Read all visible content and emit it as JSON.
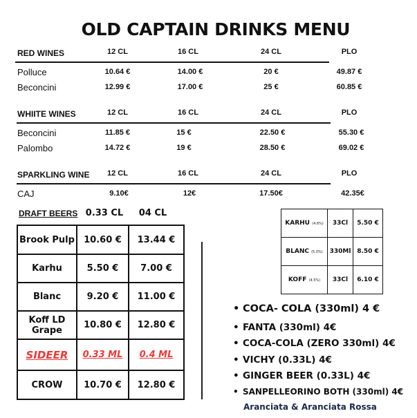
{
  "title": "OLD CAPTAIN DRINKS MENU",
  "wine_sections": [
    {
      "heading": "RED WINES",
      "columns": [
        "12 CL",
        "16 CL",
        "24 CL",
        "PLO"
      ],
      "rows": [
        {
          "name": "Polluce",
          "prices": [
            "10.64 €",
            "14.00 €",
            "20 €",
            "49.87 €"
          ]
        },
        {
          "name": "Beconcini",
          "prices": [
            "12.99 €",
            "17.00 €",
            "25 €",
            "60.85 €"
          ]
        }
      ]
    },
    {
      "heading": "WHIITE WINES",
      "columns": [
        "12 CL",
        "16 CL",
        "24 CL",
        "PLO"
      ],
      "rows": [
        {
          "name": "Beconcini",
          "prices": [
            "11.85 €",
            "15 €",
            "22.50 €",
            "55.30 €"
          ]
        },
        {
          "name": "Palombo",
          "prices": [
            "14.72 €",
            "19 €",
            "28.50 €",
            "69.02 €"
          ]
        }
      ]
    },
    {
      "heading": "SPARKLING WINE",
      "columns": [
        "12 CL",
        "16 CL",
        "24 CL",
        "PLO"
      ],
      "rows": [
        {
          "name": "CAJ",
          "prices": [
            "9.10€",
            "12€",
            "17.50€",
            "42.35€"
          ]
        }
      ]
    }
  ],
  "draft_beers": {
    "heading": "DRAFT BEERS",
    "columns": [
      "0.33 CL",
      "04 CL"
    ],
    "rows": [
      {
        "name": "Brook Pulp",
        "prices": [
          "10.60 €",
          "13.44 €"
        ]
      },
      {
        "name": "Karhu",
        "prices": [
          "5.50 €",
          "7.00 €"
        ]
      },
      {
        "name": "Blanc",
        "prices": [
          "9.20 €",
          "11.00 €"
        ]
      },
      {
        "name": "Koff  LD Grape",
        "prices": [
          "10.80 €",
          "12.80 €"
        ]
      },
      {
        "name": "SIDEER",
        "prices": [
          "0.33 ML",
          "0.4 ML"
        ]
      },
      {
        "name": "CROW",
        "prices": [
          "10.70 €",
          "12.80 €"
        ]
      }
    ],
    "highlight_color": "#f03838"
  },
  "bottled_beers": [
    {
      "name": "KARHU",
      "abv": "(4.6%)",
      "size": "33Cl",
      "price": "5.50 €"
    },
    {
      "name": "BLANC",
      "abv": "(5.0%)",
      "size": "330Ml",
      "price": "8.50 €"
    },
    {
      "name": "KOFF",
      "abv": "(4.5%)",
      "size": "33Cl",
      "price": "6.10 €"
    }
  ],
  "soft_drinks": [
    "COCA- COLA (330ml)  4 €",
    "FANTA (330ml) 4€",
    "COCA-COLA (ZERO 330ml) 4€",
    "VICHY (0.33L) 4€",
    "GINGER BEER (0.33L) 4€",
    "SANPELLEORINO BOTH (330ml) 4€"
  ],
  "soft_drinks_note": "Aranciata & Aranciata Rossa"
}
